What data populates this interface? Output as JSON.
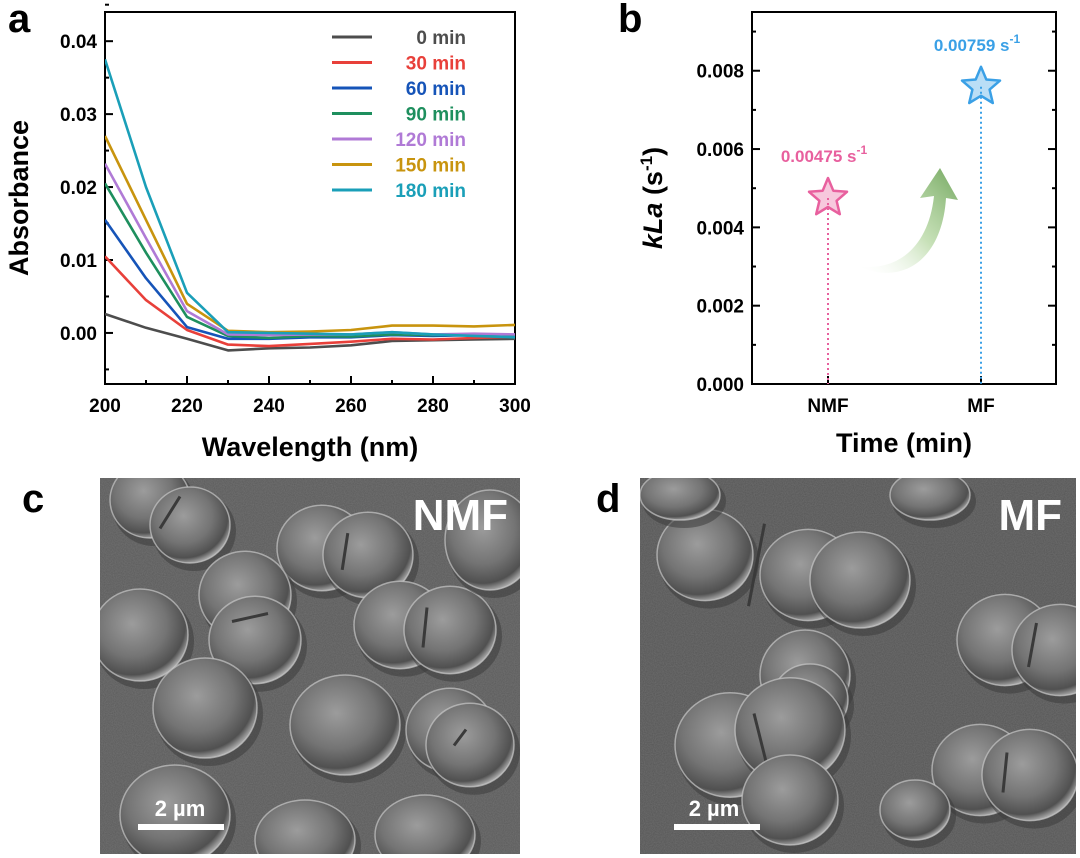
{
  "chart_data": [
    {
      "panel": "a",
      "type": "line",
      "xlabel": "Wavelength (nm)",
      "ylabel": "Absorbance",
      "xlim": [
        200,
        300
      ],
      "ylim": [
        -0.007,
        0.044
      ],
      "x_ticks": [
        200,
        220,
        240,
        260,
        280,
        300
      ],
      "y_ticks": [
        "0.00",
        "0.01",
        "0.02",
        "0.03",
        "0.04"
      ],
      "y_tick_values": [
        0.0,
        0.01,
        0.02,
        0.03,
        0.04
      ],
      "legend_position": "top-right",
      "series": [
        {
          "name": "0 min",
          "color": "#4d4d4d",
          "points": [
            [
              200,
              0.0026
            ],
            [
              210,
              0.0007
            ],
            [
              220,
              -0.0008
            ],
            [
              230,
              -0.0024
            ],
            [
              240,
              -0.0021
            ],
            [
              250,
              -0.002
            ],
            [
              260,
              -0.0017
            ],
            [
              270,
              -0.0011
            ],
            [
              280,
              -0.001
            ],
            [
              290,
              -0.0009
            ],
            [
              300,
              -0.0008
            ]
          ]
        },
        {
          "name": "30 min",
          "color": "#e8403a",
          "points": [
            [
              200,
              0.0105
            ],
            [
              210,
              0.0045
            ],
            [
              220,
              0.0004
            ],
            [
              230,
              -0.0016
            ],
            [
              240,
              -0.0018
            ],
            [
              250,
              -0.0015
            ],
            [
              260,
              -0.0012
            ],
            [
              270,
              -0.0008
            ],
            [
              280,
              -0.0009
            ],
            [
              290,
              -0.0007
            ],
            [
              300,
              -0.0005
            ]
          ]
        },
        {
          "name": "60 min",
          "color": "#1654b8",
          "points": [
            [
              200,
              0.0155
            ],
            [
              210,
              0.0075
            ],
            [
              220,
              0.0008
            ],
            [
              230,
              -0.0008
            ],
            [
              240,
              -0.0008
            ],
            [
              250,
              -0.0006
            ],
            [
              260,
              -0.0006
            ],
            [
              270,
              -0.0003
            ],
            [
              280,
              -0.0004
            ],
            [
              290,
              -0.0003
            ],
            [
              300,
              -0.0003
            ]
          ]
        },
        {
          "name": "90 min",
          "color": "#1e8f5e",
          "points": [
            [
              200,
              0.0205
            ],
            [
              210,
              0.011
            ],
            [
              220,
              0.0022
            ],
            [
              230,
              -0.0004
            ],
            [
              240,
              -0.0007
            ],
            [
              250,
              -0.0004
            ],
            [
              260,
              -0.0005
            ],
            [
              270,
              -0.0002
            ],
            [
              280,
              -0.0003
            ],
            [
              290,
              -0.0002
            ],
            [
              300,
              -0.0004
            ]
          ]
        },
        {
          "name": "120 min",
          "color": "#b07ad6",
          "points": [
            [
              200,
              0.0232
            ],
            [
              210,
              0.013
            ],
            [
              220,
              0.003
            ],
            [
              230,
              -0.0002
            ],
            [
              240,
              -0.0003
            ],
            [
              250,
              -0.0002
            ],
            [
              260,
              -0.0002
            ],
            [
              270,
              0.0001
            ],
            [
              280,
              -0.0002
            ],
            [
              290,
              -0.0001
            ],
            [
              300,
              -0.0002
            ]
          ]
        },
        {
          "name": "150 min",
          "color": "#c8940e",
          "points": [
            [
              200,
              0.027
            ],
            [
              210,
              0.0155
            ],
            [
              220,
              0.004
            ],
            [
              230,
              0.0003
            ],
            [
              240,
              0.0001
            ],
            [
              250,
              0.0002
            ],
            [
              260,
              0.0004
            ],
            [
              270,
              0.001
            ],
            [
              280,
              0.001
            ],
            [
              290,
              0.0009
            ],
            [
              300,
              0.0011
            ]
          ]
        },
        {
          "name": "180 min",
          "color": "#1a9fb8",
          "points": [
            [
              200,
              0.0375
            ],
            [
              210,
              0.02
            ],
            [
              220,
              0.0055
            ],
            [
              230,
              0.0001
            ],
            [
              240,
              0.0
            ],
            [
              250,
              -0.0001
            ],
            [
              260,
              -0.0002
            ],
            [
              270,
              0.0001
            ],
            [
              280,
              -0.0002
            ],
            [
              290,
              -0.0004
            ],
            [
              300,
              -0.0006
            ]
          ]
        }
      ]
    },
    {
      "panel": "b",
      "type": "scatter",
      "xlabel": "Time (min)",
      "ylabel_italic": "kLa",
      "ylabel_rest": " (s",
      "ylabel_sup": "-1",
      "ylabel_close": ")",
      "ylim": [
        0,
        0.0095
      ],
      "y_ticks": [
        "0.000",
        "0.002",
        "0.004",
        "0.006",
        "0.008"
      ],
      "y_tick_values": [
        0.0,
        0.002,
        0.004,
        0.006,
        0.008
      ],
      "categories": [
        "NMF",
        "MF"
      ],
      "values": [
        0.00475,
        0.00759
      ],
      "colors": [
        "#e8609e",
        "#3aa0e6"
      ],
      "point_labels": [
        "0.00475 s",
        "0.00759 s"
      ],
      "point_label_sup": "-1",
      "arrow_color": "#7fb069"
    }
  ],
  "sem_images": [
    {
      "panel": "c",
      "label": "NMF",
      "scale_bar": "2 µm"
    },
    {
      "panel": "d",
      "label": "MF",
      "scale_bar": "2 µm"
    }
  ]
}
